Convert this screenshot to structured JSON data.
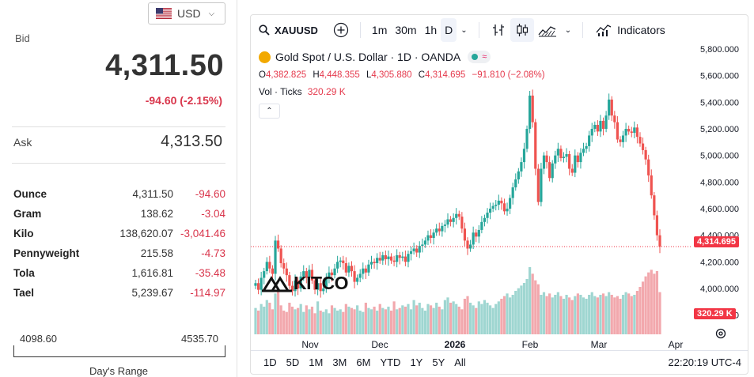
{
  "left_panel": {
    "currency": {
      "label": "USD"
    },
    "bid": {
      "label": "Bid",
      "price": "4,311.50",
      "change": "-94.60 (-2.15%)"
    },
    "ask": {
      "label": "Ask",
      "price": "4,313.50"
    },
    "units": [
      {
        "name": "Ounce",
        "price": "4,311.50",
        "change": "-94.60"
      },
      {
        "name": "Gram",
        "price": "138.62",
        "change": "-3.04"
      },
      {
        "name": "Kilo",
        "price": "138,620.07",
        "change": "-3,041.46"
      },
      {
        "name": "Pennyweight",
        "price": "215.58",
        "change": "-4.73"
      },
      {
        "name": "Tola",
        "price": "1,616.81",
        "change": "-35.48"
      },
      {
        "name": "Tael",
        "price": "5,239.67",
        "change": "-114.97"
      }
    ],
    "range": {
      "low": "4098.60",
      "high": "4535.70",
      "label": "Day's Range"
    }
  },
  "chart": {
    "toolbar": {
      "symbol": "XAUUSD",
      "intervals": [
        "1m",
        "30m",
        "1h",
        "D"
      ],
      "active_interval": "D",
      "indicators_label": "Indicators"
    },
    "symbol_title": "Gold Spot / U.S. Dollar · 1D · OANDA",
    "ohlc": {
      "o_label": "O",
      "o": "4,382.825",
      "h_label": "H",
      "h": "4,448.355",
      "l_label": "L",
      "l": "4,305.880",
      "c_label": "C",
      "c": "4,314.695",
      "change": "−91.810 (−2.08%)"
    },
    "volume": {
      "label": "Vol · Ticks",
      "value": "320.29 K"
    },
    "price_tag": "4,314.695",
    "volume_tag": "320.29 K",
    "logo_text": "KITCO",
    "bottom_ranges": [
      "1D",
      "5D",
      "1M",
      "3M",
      "6M",
      "YTD",
      "1Y",
      "5Y",
      "All"
    ],
    "clock": "22:20:19 UTC-4",
    "colors": {
      "up": "#26a69a",
      "down": "#ef5350",
      "vol_up": "#9fd6d1",
      "vol_down": "#f2a8ad",
      "price_tag": "#f23645"
    }
  },
  "chart_data": {
    "type": "candlestick",
    "title": "Gold Spot / U.S. Dollar · 1D · OANDA",
    "y_ticks": [
      "5,800.000",
      "5,600.000",
      "5,400.000",
      "5,200.000",
      "5,000.000",
      "4,800.000",
      "4,600.000",
      "4,400.000",
      "4,200.000",
      "4,000.000",
      "3,800.000"
    ],
    "ylim": [
      3780,
      5830
    ],
    "x_ticks": [
      "Nov",
      "Dec",
      "2026",
      "Feb",
      "Mar",
      "Apr"
    ],
    "close_series": [
      4040,
      3990,
      4080,
      4130,
      4200,
      4150,
      4110,
      4360,
      4300,
      4190,
      4150,
      4100,
      4020,
      3980,
      4060,
      4000,
      4090,
      4130,
      4080,
      4140,
      4060,
      3990,
      4040,
      3980,
      4000,
      4080,
      4120,
      4100,
      4150,
      4200,
      4210,
      4190,
      4120,
      4170,
      4130,
      4050,
      4080,
      4110,
      4150,
      4120,
      4180,
      4200,
      4190,
      4230,
      4210,
      4250,
      4220,
      4240,
      4210,
      4200,
      4250,
      4230,
      4240,
      4200,
      4260,
      4280,
      4300,
      4270,
      4320,
      4330,
      4360,
      4400,
      4380,
      4420,
      4450,
      4430,
      4470,
      4480,
      4520,
      4500,
      4530,
      4560,
      4540,
      4450,
      4360,
      4300,
      4330,
      4420,
      4390,
      4440,
      4500,
      4530,
      4570,
      4600,
      4620,
      4630,
      4660,
      4640,
      4580,
      4600,
      4680,
      4760,
      4820,
      4880,
      4950,
      5050,
      5200,
      5450,
      5250,
      4900,
      4650,
      4900,
      5000,
      4950,
      4830,
      4940,
      5000,
      5050,
      4980,
      4990,
      5010,
      4900,
      4870,
      5000,
      4950,
      5020,
      5050,
      5070,
      5150,
      5200,
      5230,
      5180,
      5260,
      5200,
      5300,
      5420,
      5300,
      5250,
      5120,
      5100,
      5150,
      5200,
      5180,
      5170,
      5210,
      5140,
      5090,
      5040,
      4970,
      4850,
      4700,
      4550,
      4400,
      4314.695
    ],
    "volume_series_k": [
      200,
      180,
      230,
      210,
      260,
      240,
      190,
      310,
      340,
      220,
      180,
      170,
      240,
      210,
      190,
      200,
      230,
      170,
      220,
      190,
      210,
      160,
      250,
      180,
      170,
      190,
      160,
      220,
      200,
      180,
      190,
      170,
      230,
      210,
      200,
      190,
      220,
      180,
      170,
      240,
      200,
      190,
      210,
      180,
      230,
      200,
      190,
      210,
      180,
      250,
      190,
      200,
      220,
      210,
      230,
      190,
      260,
      220,
      240,
      200,
      180,
      230,
      220,
      200,
      240,
      210,
      190,
      260,
      280,
      240,
      250,
      230,
      210,
      190,
      270,
      290,
      240,
      220,
      200,
      250,
      230,
      260,
      240,
      220,
      200,
      230,
      250,
      270,
      290,
      310,
      280,
      300,
      330,
      350,
      370,
      390,
      420,
      510,
      460,
      410,
      380,
      300,
      320,
      290,
      310,
      280,
      300,
      320,
      290,
      270,
      300,
      280,
      260,
      290,
      310,
      300,
      280,
      270,
      300,
      320,
      290,
      280,
      300,
      310,
      290,
      320,
      300,
      280,
      290,
      270,
      300,
      320,
      310,
      290,
      300,
      330,
      360,
      400,
      440,
      470,
      490,
      460,
      480,
      320.29
    ]
  }
}
